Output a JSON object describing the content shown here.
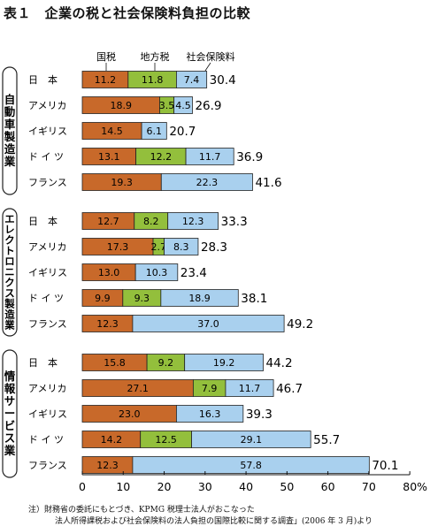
{
  "title": "表１　企業の税と社会保険料負担の比較",
  "legend": [
    "国税",
    "地方税",
    "社会保険料"
  ],
  "colors": {
    "national": "#c8692a",
    "local": "#93bf3c",
    "social": "#a9d0ee"
  },
  "chart_data": {
    "type": "bar",
    "orientation": "horizontal",
    "stacked": true,
    "xlim": [
      0,
      80
    ],
    "xticks": [
      "0",
      "10",
      "20",
      "30",
      "40",
      "50",
      "60",
      "70",
      "80%"
    ],
    "series_names": [
      "国税",
      "地方税",
      "社会保険料"
    ],
    "groups": [
      {
        "label": "自動車製造業",
        "rows": [
          {
            "country": "日　本",
            "values": [
              11.2,
              11.8,
              7.4
            ],
            "labels": [
              "11.2",
              "11.8",
              "7.4"
            ],
            "total": "30.4"
          },
          {
            "country": "アメリカ",
            "values": [
              18.9,
              3.5,
              4.5
            ],
            "labels": [
              "18.9",
              "3.5",
              "4.5"
            ],
            "total": "26.9"
          },
          {
            "country": "イギリス",
            "values": [
              14.5,
              0,
              6.1
            ],
            "labels": [
              "14.5",
              "",
              "6.1"
            ],
            "total": "20.7"
          },
          {
            "country": "ド イ ツ",
            "values": [
              13.1,
              12.2,
              11.7
            ],
            "labels": [
              "13.1",
              "12.2",
              "11.7"
            ],
            "total": "36.9"
          },
          {
            "country": "フランス",
            "values": [
              19.3,
              0,
              22.3
            ],
            "labels": [
              "19.3",
              "",
              "22.3"
            ],
            "total": "41.6"
          }
        ]
      },
      {
        "label": "エレクトロニクス製造業",
        "rows": [
          {
            "country": "日　本",
            "values": [
              12.7,
              8.2,
              12.3
            ],
            "labels": [
              "12.7",
              "8.2",
              "12.3"
            ],
            "total": "33.3"
          },
          {
            "country": "アメリカ",
            "values": [
              17.3,
              2.7,
              8.3
            ],
            "labels": [
              "17.3",
              "2.7",
              "8.3"
            ],
            "total": "28.3"
          },
          {
            "country": "イギリス",
            "values": [
              13.0,
              0,
              10.3
            ],
            "labels": [
              "13.0",
              "",
              "10.3"
            ],
            "total": "23.4"
          },
          {
            "country": "ド イ ツ",
            "values": [
              9.9,
              9.3,
              18.9
            ],
            "labels": [
              "9.9",
              "9.3",
              "18.9"
            ],
            "total": "38.1"
          },
          {
            "country": "フランス",
            "values": [
              12.3,
              0,
              37.0
            ],
            "labels": [
              "12.3",
              "",
              "37.0"
            ],
            "total": "49.2"
          }
        ]
      },
      {
        "label": "情報サービス業",
        "rows": [
          {
            "country": "日　本",
            "values": [
              15.8,
              9.2,
              19.2
            ],
            "labels": [
              "15.8",
              "9.2",
              "19.2"
            ],
            "total": "44.2"
          },
          {
            "country": "アメリカ",
            "values": [
              27.1,
              7.9,
              11.7
            ],
            "labels": [
              "27.1",
              "7.9",
              "11.7"
            ],
            "total": "46.7"
          },
          {
            "country": "イギリス",
            "values": [
              23.0,
              0,
              16.3
            ],
            "labels": [
              "23.0",
              "",
              "16.3"
            ],
            "total": "39.3"
          },
          {
            "country": "ド イ ツ",
            "values": [
              14.2,
              12.5,
              29.1
            ],
            "labels": [
              "14.2",
              "12.5",
              "29.1"
            ],
            "total": "55.7"
          },
          {
            "country": "フランス",
            "values": [
              12.3,
              0,
              57.8
            ],
            "labels": [
              "12.3",
              "",
              "57.8"
            ],
            "total": "70.1"
          }
        ]
      }
    ]
  },
  "notes": [
    "注）財務省の委託にもとづき、KPMG 税理士法人がおこなった",
    "法人所得課税および社会保険料の法人負担の国際比較に関する調査」(2006 年 3 月)より"
  ]
}
